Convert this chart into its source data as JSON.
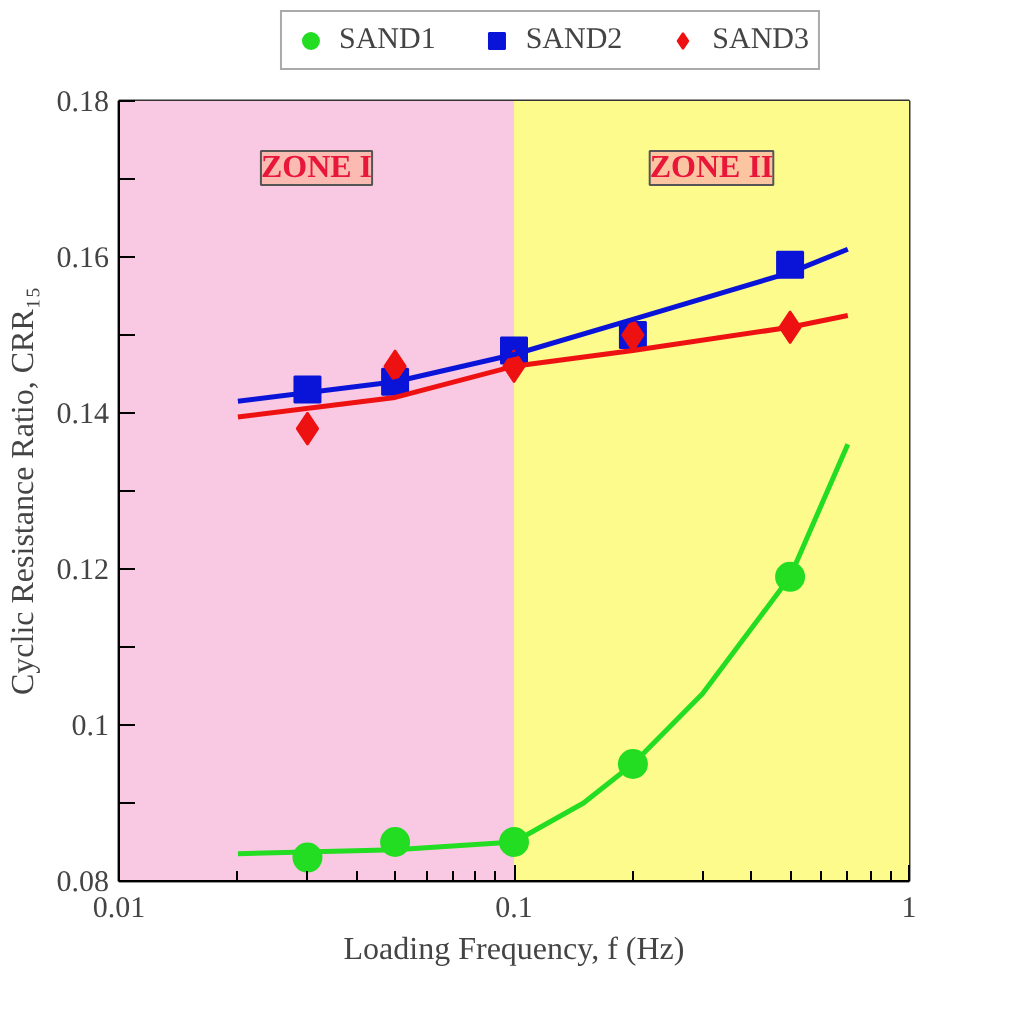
{
  "chart_data": {
    "type": "scatter",
    "xlabel": "Loading Frequency, f (Hz)",
    "ylabel": "Cyclic Resistance Ratio, CRR₁₅",
    "log": "x",
    "legend": "top",
    "xlim": [
      0.01,
      1
    ],
    "xticks": [
      0.01,
      0.1,
      1
    ],
    "ylim": [
      0.08,
      0.18
    ],
    "yticks": [
      0.08,
      {
        "value": 0.09,
        "label": null
      },
      0.1,
      {
        "value": 0.11,
        "label": null
      },
      0.12,
      {
        "value": 0.13,
        "label": null
      },
      0.14,
      {
        "value": 0.15,
        "label": null
      },
      0.16,
      {
        "value": 0.17,
        "label": null
      },
      0.18
    ],
    "bands": [
      {
        "axis": "x",
        "from": 0.01,
        "to": 0.1,
        "label": "ZONE I",
        "color": "#f9c8e2"
      },
      {
        "axis": "x",
        "from": 0.1,
        "to": 1,
        "label": "ZONE II",
        "color": "#fdfb8c"
      }
    ],
    "series": [
      {
        "name": "SAND1",
        "color": "#22dd22",
        "marker": "circle",
        "x": [
          0.03,
          0.05,
          0.1,
          0.2,
          0.5
        ],
        "values": [
          0.083,
          0.085,
          0.085,
          0.095,
          0.119
        ]
      },
      {
        "name": "SAND2",
        "color": "#0a14d8",
        "marker": "square",
        "x": [
          0.03,
          0.05,
          0.1,
          0.2,
          0.5
        ],
        "values": [
          0.143,
          0.144,
          0.148,
          0.15,
          0.159
        ]
      },
      {
        "name": "SAND3",
        "color": "#ee1111",
        "marker": "diamond",
        "x": [
          0.03,
          0.05,
          0.1,
          0.2,
          0.5
        ],
        "values": [
          0.138,
          0.146,
          0.146,
          0.15,
          0.151
        ]
      },
      {
        "type": "line",
        "color": "#22dd22",
        "x": [
          0.02,
          0.05,
          0.1,
          0.15,
          0.2,
          0.3,
          0.5,
          0.7
        ],
        "values": [
          0.0835,
          0.084,
          0.085,
          0.09,
          0.095,
          0.104,
          0.119,
          0.136
        ]
      },
      {
        "type": "line",
        "color": "#0a14d8",
        "x": [
          0.02,
          0.05,
          0.1,
          0.2,
          0.5,
          0.7
        ],
        "values": [
          0.1415,
          0.144,
          0.1475,
          0.152,
          0.158,
          0.161
        ]
      },
      {
        "type": "line",
        "color": "#ee1111",
        "x": [
          0.02,
          0.05,
          0.1,
          0.2,
          0.5,
          0.7
        ],
        "values": [
          0.1395,
          0.142,
          0.146,
          0.148,
          0.151,
          0.1525
        ]
      }
    ]
  }
}
